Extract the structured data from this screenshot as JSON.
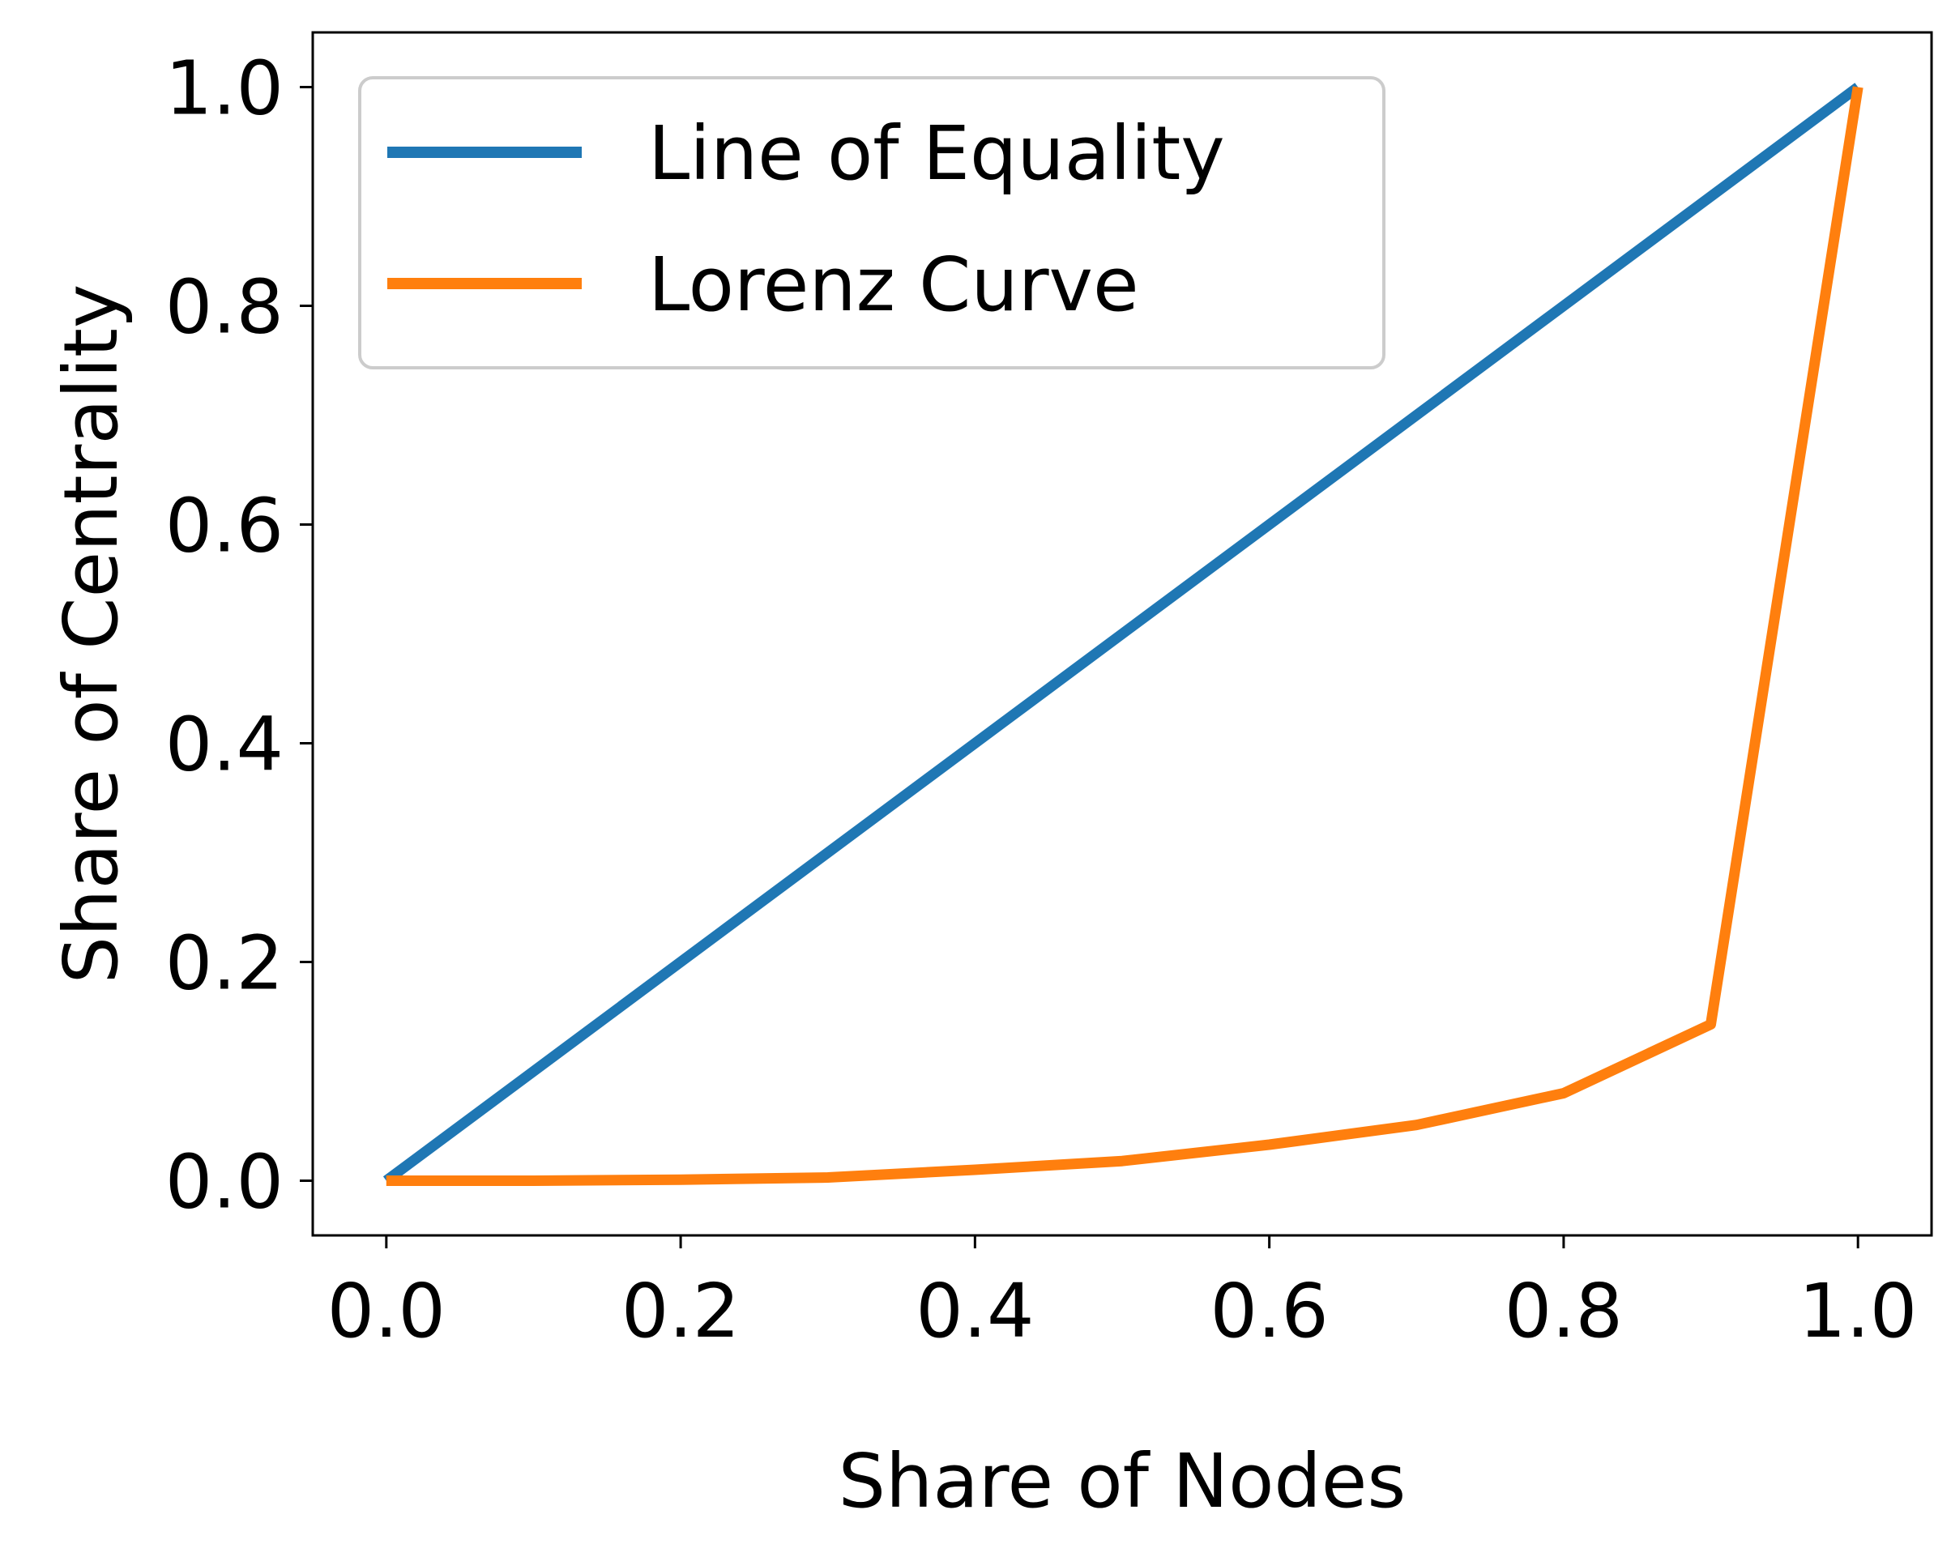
{
  "chart_data": {
    "type": "line",
    "title": "",
    "xlabel": "Share of Nodes",
    "ylabel": "Share of Centrality",
    "xlim": [
      -0.05,
      1.05
    ],
    "ylim": [
      -0.05,
      1.05
    ],
    "xticks": [
      0.0,
      0.2,
      0.4,
      0.6,
      0.8,
      1.0
    ],
    "yticks": [
      0.0,
      0.2,
      0.4,
      0.6,
      0.8,
      1.0
    ],
    "xtick_labels": [
      "0.0",
      "0.2",
      "0.4",
      "0.6",
      "0.8",
      "1.0"
    ],
    "ytick_labels": [
      "0.0",
      "0.2",
      "0.4",
      "0.6",
      "0.8",
      "1.0"
    ],
    "grid": false,
    "legend_position": "top-left",
    "series": [
      {
        "name": "Line of Equality",
        "color": "#1f77b4",
        "x": [
          0.0,
          1.0
        ],
        "y": [
          0.0,
          1.0
        ]
      },
      {
        "name": "Lorenz Curve",
        "color": "#ff7f0e",
        "x": [
          0.0,
          0.1,
          0.2,
          0.3,
          0.4,
          0.5,
          0.6,
          0.7,
          0.8,
          0.9,
          1.0
        ],
        "y": [
          0.0,
          0.0,
          0.001,
          0.003,
          0.01,
          0.018,
          0.033,
          0.051,
          0.08,
          0.143,
          1.0
        ]
      }
    ]
  }
}
